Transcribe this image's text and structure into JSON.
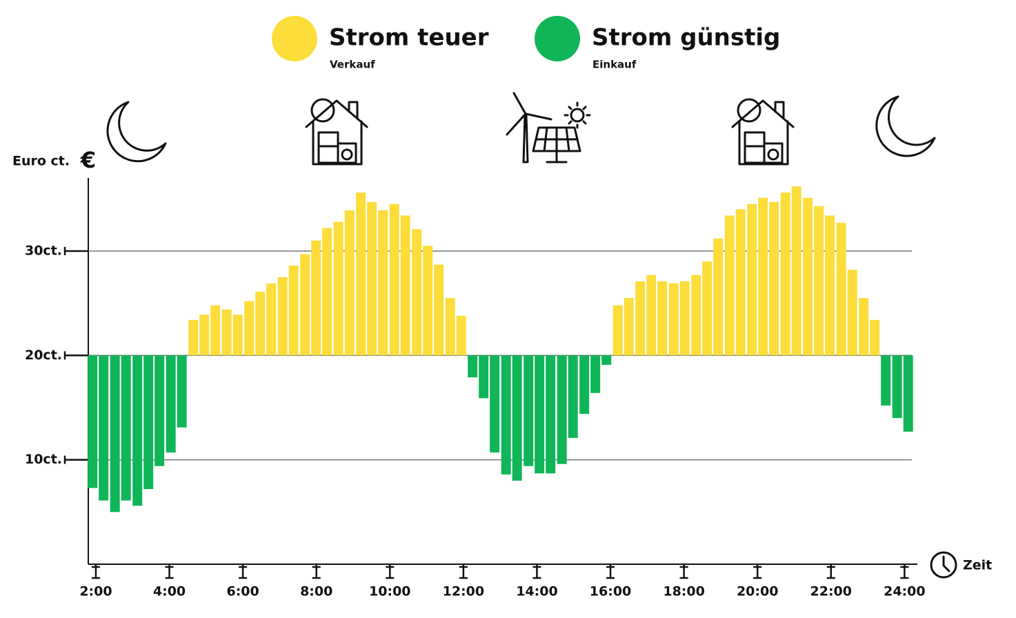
{
  "chart_data": {
    "type": "bar",
    "legend": [
      {
        "name": "Strom teuer",
        "note": "Verkauf",
        "color": "#fcdd3a"
      },
      {
        "name": "Strom günstig",
        "note": "Einkauf",
        "color": "#0fb557"
      }
    ],
    "ylabel": "Euro ct.",
    "y_unit": "€",
    "xlabel": "Zeit",
    "baseline": 20,
    "x": [
      1.91,
      2.21,
      2.52,
      2.82,
      3.13,
      3.43,
      3.73,
      4.04,
      4.34,
      4.65,
      4.95,
      5.25,
      5.56,
      5.86,
      6.17,
      6.47,
      6.77,
      7.08,
      7.38,
      7.69,
      7.99,
      8.29,
      8.6,
      8.9,
      9.21,
      9.51,
      9.81,
      10.12,
      10.42,
      10.73,
      11.03,
      11.33,
      11.64,
      11.94,
      12.25,
      12.55,
      12.85,
      13.16,
      13.46,
      13.77,
      14.07,
      14.37,
      14.68,
      14.98,
      15.29,
      15.59,
      15.89,
      16.2,
      16.5,
      16.81,
      17.11,
      17.41,
      17.72,
      18.02,
      18.33,
      18.63,
      18.93,
      19.24,
      19.54,
      19.85,
      20.15,
      20.45,
      20.76,
      21.06,
      21.37,
      21.67,
      21.97,
      22.28,
      22.58,
      22.89,
      23.19,
      23.49,
      23.8,
      24.1
    ],
    "values": [
      7.3,
      6.1,
      5.0,
      6.1,
      5.6,
      7.2,
      9.4,
      10.7,
      13.1,
      23.4,
      23.9,
      24.8,
      24.4,
      23.9,
      25.2,
      26.1,
      26.9,
      27.5,
      28.6,
      29.7,
      31.0,
      32.2,
      32.8,
      33.9,
      35.6,
      34.7,
      33.9,
      34.5,
      33.4,
      32.1,
      30.5,
      28.7,
      25.5,
      23.8,
      17.9,
      15.9,
      10.7,
      8.6,
      8.0,
      9.4,
      8.7,
      8.7,
      9.6,
      12.1,
      14.4,
      16.4,
      19.1,
      24.8,
      25.5,
      27.1,
      27.7,
      27.1,
      26.9,
      27.1,
      27.7,
      29.0,
      31.2,
      33.4,
      34.0,
      34.5,
      35.1,
      34.7,
      35.6,
      36.2,
      35.1,
      34.3,
      33.4,
      32.7,
      28.2,
      25.5,
      23.4,
      15.2,
      14.0,
      12.7
    ],
    "xlim": [
      1.8,
      24.35
    ],
    "ylim": [
      0,
      37
    ],
    "xticks": [
      {
        "value": 2,
        "label": "2:00"
      },
      {
        "value": 4,
        "label": "4:00"
      },
      {
        "value": 6,
        "label": "6:00"
      },
      {
        "value": 8,
        "label": "8:00"
      },
      {
        "value": 10,
        "label": "10:00"
      },
      {
        "value": 12,
        "label": "12:00"
      },
      {
        "value": 14,
        "label": "14:00"
      },
      {
        "value": 16,
        "label": "16:00"
      },
      {
        "value": 18,
        "label": "18:00"
      },
      {
        "value": 20,
        "label": "20:00"
      },
      {
        "value": 22,
        "label": "22:00"
      },
      {
        "value": 24,
        "label": "24:00"
      }
    ],
    "yticks": [
      {
        "value": 10,
        "label": "10ct."
      },
      {
        "value": 20,
        "label": "20ct."
      },
      {
        "value": 30,
        "label": "30ct."
      }
    ],
    "grid": true
  }
}
